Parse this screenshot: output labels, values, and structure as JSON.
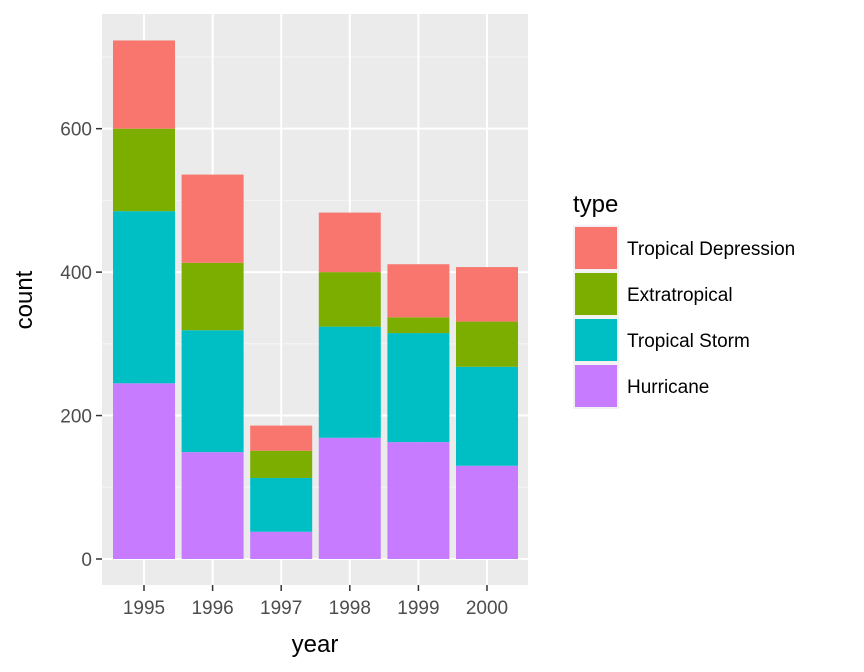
{
  "chart_data": {
    "type": "bar",
    "stacked": true,
    "title": "",
    "xlabel": "year",
    "ylabel": "count",
    "categories": [
      "1995",
      "1996",
      "1997",
      "1998",
      "1999",
      "2000"
    ],
    "ylim": [
      0,
      720
    ],
    "yticks": [
      0,
      200,
      400,
      600
    ],
    "grid": true,
    "legend_title": "type",
    "legend_position": "right",
    "series": [
      {
        "name": "Hurricane",
        "color": "#C77CFF",
        "values": [
          245,
          149,
          38,
          169,
          163,
          130
        ]
      },
      {
        "name": "Tropical Storm",
        "color": "#00BFC4",
        "values": [
          240,
          170,
          75,
          155,
          152,
          138
        ]
      },
      {
        "name": "Extratropical",
        "color": "#7CAE00",
        "values": [
          115,
          94,
          38,
          76,
          22,
          63
        ]
      },
      {
        "name": "Tropical Depression",
        "color": "#F8766D",
        "values": [
          123,
          123,
          35,
          83,
          74,
          76
        ]
      }
    ],
    "legend_order": [
      "Tropical Depression",
      "Extratropical",
      "Tropical Storm",
      "Hurricane"
    ]
  }
}
